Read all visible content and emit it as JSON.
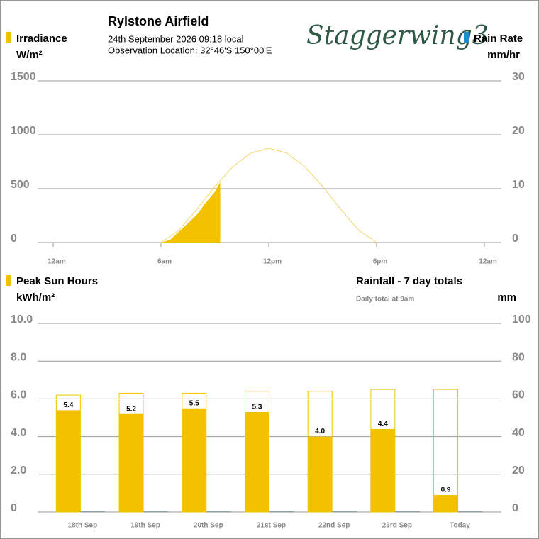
{
  "header": {
    "title": "Rylstone Airfield",
    "datetime": "24th September 2026  09:18 local",
    "location": "Observation Location:  32°46'S 150°00'E",
    "logo": "Staggerwing3"
  },
  "chart_data": [
    {
      "type": "area",
      "y_label": "W/m²",
      "xlim": [
        0,
        24
      ],
      "xticks": [
        {
          "value": 0,
          "label": "12am"
        },
        {
          "value": 6,
          "label": "6am"
        },
        {
          "value": 12,
          "label": "12pm"
        },
        {
          "value": 18,
          "label": "6pm"
        },
        {
          "value": 24,
          "label": "12am"
        }
      ],
      "ylim": [
        0,
        1500
      ],
      "yticks": [
        0,
        500,
        1000,
        1500
      ],
      "y2_name": "Rain Rate",
      "y2_label": "mm/hr",
      "y2_color": "#1a8fd6",
      "y2lim": [
        0,
        30
      ],
      "y2ticks": [
        0,
        10,
        20,
        30
      ],
      "grid": true,
      "series": [
        {
          "name": "Irradiance",
          "color": "#f2c200",
          "style": "fill",
          "x": [
            6,
            6.5,
            7,
            7.5,
            8,
            8.5,
            9,
            9.3
          ],
          "values": [
            0,
            25,
            100,
            180,
            260,
            370,
            470,
            560
          ]
        },
        {
          "color": "#f5d46a",
          "style": "outline",
          "x": [
            6,
            7,
            8,
            9,
            10,
            11,
            12,
            13,
            14,
            15,
            16,
            17,
            18
          ],
          "values": [
            0,
            115,
            310,
            520,
            705,
            830,
            875,
            830,
            705,
            520,
            310,
            115,
            0
          ]
        }
      ]
    },
    {
      "type": "bar",
      "title": "Rainfall - 7 day totals",
      "subtitle": "Daily total at 9am",
      "y_label": "kWh/m²",
      "y2_label": "mm",
      "categories": [
        "18th Sep",
        "19th Sep",
        "20th Sep",
        "21st Sep",
        "22nd Sep",
        "23rd Sep",
        "Today"
      ],
      "ylim": [
        0,
        10
      ],
      "yticks": [
        0,
        {
          "value": 2,
          "label": "2.0"
        },
        {
          "value": 4,
          "label": "4.0"
        },
        {
          "value": 6,
          "label": "6.0"
        },
        {
          "value": 8,
          "label": "8.0"
        },
        {
          "value": 10,
          "label": "10.0"
        }
      ],
      "y2lim": [
        0,
        100
      ],
      "y2ticks": [
        0,
        20,
        40,
        60,
        80,
        100
      ],
      "grid": true,
      "series": [
        {
          "name": "Peak Sun Hours",
          "color": "#f2c200",
          "style": "fill",
          "values": [
            5.4,
            5.2,
            5.5,
            5.3,
            4.0,
            4.4,
            0.9
          ],
          "value_labels": [
            "5.4",
            "5.2",
            "5.5",
            "5.3",
            "4.0",
            "4.4",
            "0.9"
          ]
        },
        {
          "color": "#f2c200",
          "style": "outline",
          "values": [
            6.2,
            6.3,
            6.3,
            6.4,
            6.4,
            6.5,
            6.5
          ]
        },
        {
          "color": "#7aa6b8",
          "style": "fill",
          "axis": "y2",
          "values": [
            0,
            0,
            0,
            0,
            0,
            0,
            0
          ]
        }
      ]
    }
  ]
}
